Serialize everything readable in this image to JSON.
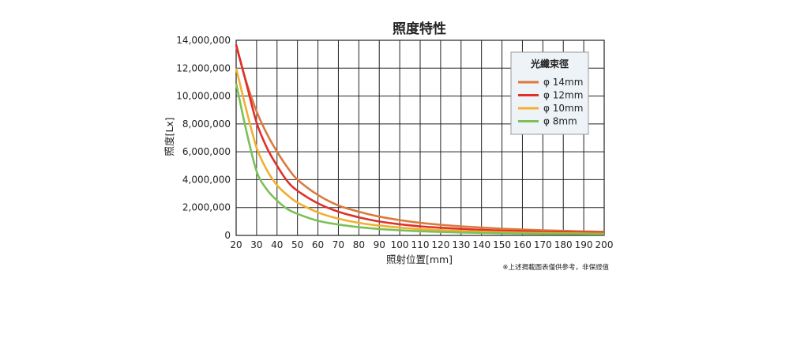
{
  "chart_data": {
    "type": "line",
    "title": "照度特性",
    "xlabel": "照射位置[mm]",
    "ylabel": "照度[Lx]",
    "xlim": [
      20,
      200
    ],
    "ylim": [
      0,
      14000000
    ],
    "x_ticks": [
      "20",
      "30",
      "40",
      "50",
      "60",
      "70",
      "80",
      "90",
      "100",
      "110",
      "120",
      "130",
      "140",
      "150",
      "160",
      "170",
      "180",
      "190",
      "200"
    ],
    "y_ticks": [
      "0",
      "2,000,000",
      "4,000,000",
      "6,000,000",
      "8,000,000",
      "10,000,000",
      "12,000,000",
      "14,000,000"
    ],
    "grid": true,
    "legend": {
      "title": "光纖束徑",
      "placement": "top-right"
    },
    "series": [
      {
        "name": "φ 14mm",
        "color": "#d97a3e",
        "x": [
          20,
          25,
          30,
          35,
          40,
          45,
          50,
          60,
          70,
          80,
          90,
          100,
          110,
          120,
          130,
          140,
          150,
          160,
          170,
          180,
          190,
          200
        ],
        "y": [
          13600000,
          11000000,
          8900000,
          7300000,
          6000000,
          4900000,
          4000000,
          2900000,
          2150000,
          1700000,
          1350000,
          1100000,
          900000,
          760000,
          650000,
          560000,
          480000,
          420000,
          370000,
          330000,
          290000,
          260000
        ]
      },
      {
        "name": "φ 12mm",
        "color": "#e0302a",
        "x": [
          20,
          25,
          30,
          35,
          40,
          45,
          50,
          60,
          70,
          80,
          90,
          100,
          110,
          120,
          130,
          140,
          150,
          160,
          170,
          180,
          190,
          200
        ],
        "y": [
          13700000,
          10900000,
          8100000,
          6300000,
          5000000,
          3900000,
          3200000,
          2300000,
          1700000,
          1300000,
          1000000,
          800000,
          650000,
          550000,
          470000,
          400000,
          340000,
          300000,
          260000,
          230000,
          210000,
          190000
        ]
      },
      {
        "name": "φ 10mm",
        "color": "#f0b030",
        "x": [
          20,
          25,
          30,
          35,
          40,
          45,
          50,
          60,
          70,
          80,
          90,
          100,
          110,
          120,
          130,
          140,
          150,
          160,
          170,
          180,
          190,
          200
        ],
        "y": [
          12000000,
          9000000,
          6300000,
          4700000,
          3600000,
          2900000,
          2350000,
          1650000,
          1200000,
          900000,
          700000,
          560000,
          450000,
          380000,
          320000,
          270000,
          230000,
          200000,
          175000,
          155000,
          140000,
          125000
        ]
      },
      {
        "name": "φ  8mm",
        "color": "#7cc05a",
        "x": [
          20,
          25,
          30,
          35,
          40,
          45,
          50,
          60,
          70,
          80,
          90,
          100,
          110,
          120,
          130,
          140,
          150,
          160,
          170,
          180,
          190,
          200
        ],
        "y": [
          10900000,
          7500000,
          4600000,
          3300000,
          2500000,
          1900000,
          1550000,
          1050000,
          780000,
          590000,
          460000,
          370000,
          300000,
          250000,
          210000,
          180000,
          155000,
          135000,
          120000,
          105000,
          95000,
          85000
        ]
      }
    ],
    "note": "※上述揭載圖表僅供參考，非保證值"
  }
}
